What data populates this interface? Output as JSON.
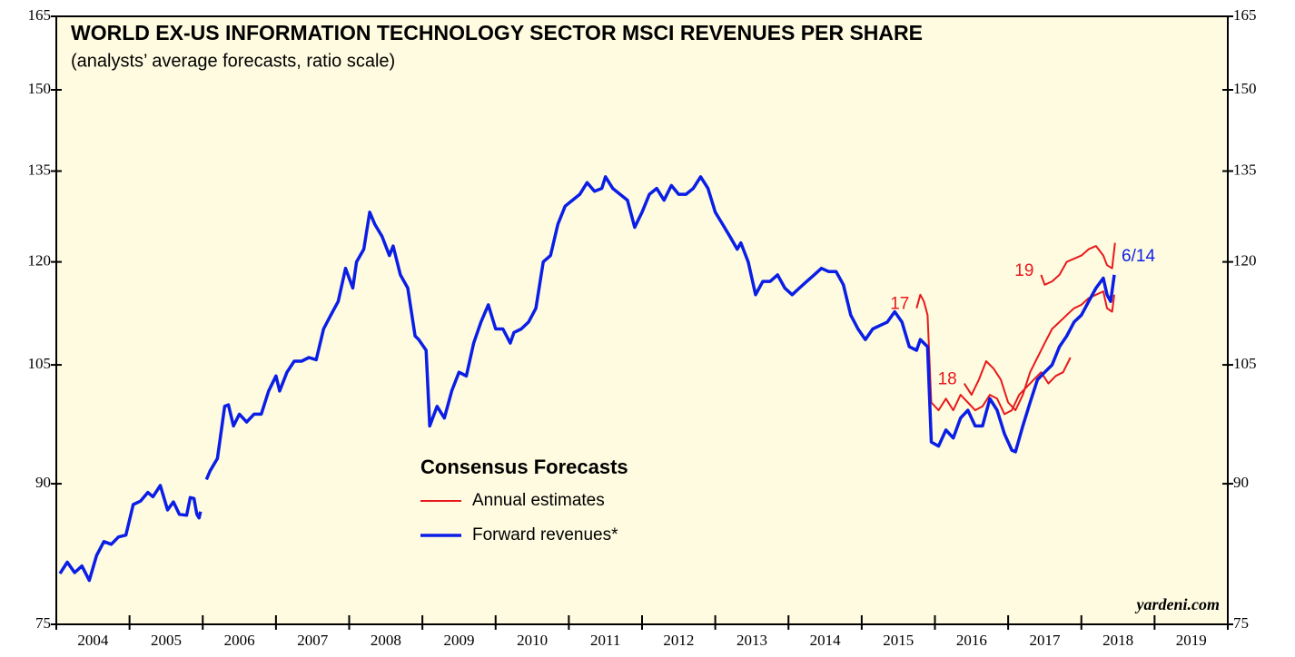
{
  "chart_data": {
    "type": "line",
    "title": "WORLD EX-US INFORMATION TECHNOLOGY SECTOR MSCI REVENUES PER SHARE",
    "subtitle": "(analysts’ average forecasts, ratio scale)",
    "legend_title": "Consensus Forecasts",
    "source": "yardeni.com",
    "log_scale": true,
    "ylim": [
      75,
      165
    ],
    "yticks": [
      75,
      90,
      105,
      120,
      135,
      150,
      165
    ],
    "xlim": [
      2004,
      2020
    ],
    "xticks": [
      2004,
      2005,
      2006,
      2007,
      2008,
      2009,
      2010,
      2011,
      2012,
      2013,
      2014,
      2015,
      2016,
      2017,
      2018,
      2019,
      2020
    ],
    "categories": [
      "2004",
      "2005",
      "2006",
      "2007",
      "2008",
      "2009",
      "2010",
      "2011",
      "2012",
      "2013",
      "2014",
      "2015",
      "2016",
      "2017",
      "2018",
      "2019"
    ],
    "series": [
      {
        "name": "Annual estimates",
        "color": "#e8191c",
        "pieces": [
          {
            "label": "17",
            "x": [
              2015.75,
              2015.8,
              2015.85,
              2015.9,
              2015.95,
              2016.05,
              2016.15,
              2016.25,
              2016.35,
              2016.45,
              2016.55,
              2016.65,
              2016.75,
              2016.85,
              2016.95,
              2017.05,
              2017.15,
              2017.25,
              2017.35,
              2017.45,
              2017.55,
              2017.65,
              2017.75,
              2017.85
            ],
            "values": [
              113,
              115,
              114,
              112,
              100,
              99,
              100.5,
              99,
              101,
              100,
              99,
              99.5,
              101,
              100.5,
              98.5,
              99,
              101,
              102,
              103,
              104,
              102.5,
              103.5,
              104,
              106
            ]
          },
          {
            "label": "18",
            "x": [
              2016.4,
              2016.5,
              2016.6,
              2016.7,
              2016.8,
              2016.9,
              2017.0,
              2017.1,
              2017.2,
              2017.3,
              2017.4,
              2017.5,
              2017.6,
              2017.7,
              2017.8,
              2017.9,
              2018.0,
              2018.1,
              2018.2,
              2018.3,
              2018.35,
              2018.42,
              2018.45
            ],
            "values": [
              102.5,
              101,
              103,
              105.5,
              104.5,
              103,
              100,
              99,
              101,
              104,
              106,
              108,
              110,
              111,
              112,
              113,
              113.5,
              114.5,
              115,
              115.5,
              113,
              112.5,
              115
            ]
          },
          {
            "label": "19",
            "x": [
              2017.45,
              2017.5,
              2017.6,
              2017.7,
              2017.8,
              2017.9,
              2018.0,
              2018.1,
              2018.2,
              2018.3,
              2018.35,
              2018.42,
              2018.46
            ],
            "values": [
              118,
              116.5,
              117,
              118,
              120,
              120.5,
              121,
              122,
              122.5,
              121,
              119.5,
              119,
              123
            ]
          }
        ]
      },
      {
        "name": "Forward revenues*",
        "color": "#0a1ee6",
        "end_label": "6/14",
        "x": [
          2004.05,
          2004.15,
          2004.25,
          2004.35,
          2004.45,
          2004.55,
          2004.65,
          2004.75,
          2004.85,
          2004.95,
          2005.05,
          2005.15,
          2005.25,
          2005.32,
          2005.42,
          2005.52,
          2005.6,
          2005.68,
          2005.78,
          2005.83,
          2005.88,
          2005.92,
          2005.95,
          2005.97,
          2006.0,
          2006.05,
          2006.1,
          2006.2,
          2006.3,
          2006.35,
          2006.42,
          2006.5,
          2006.6,
          2006.7,
          2006.8,
          2006.9,
          2007.0,
          2007.05,
          2007.15,
          2007.25,
          2007.35,
          2007.45,
          2007.55,
          2007.65,
          2007.75,
          2007.85,
          2007.95,
          2008.05,
          2008.1,
          2008.2,
          2008.28,
          2008.35,
          2008.45,
          2008.55,
          2008.6,
          2008.7,
          2008.8,
          2008.9,
          2008.95,
          2009.05,
          2009.1,
          2009.2,
          2009.3,
          2009.4,
          2009.5,
          2009.6,
          2009.7,
          2009.8,
          2009.9,
          2010.0,
          2010.1,
          2010.2,
          2010.25,
          2010.35,
          2010.45,
          2010.55,
          2010.65,
          2010.75,
          2010.85,
          2010.95,
          2011.05,
          2011.15,
          2011.25,
          2011.35,
          2011.45,
          2011.5,
          2011.6,
          2011.7,
          2011.8,
          2011.9,
          2012.0,
          2012.1,
          2012.2,
          2012.3,
          2012.4,
          2012.5,
          2012.6,
          2012.7,
          2012.8,
          2012.9,
          2013.0,
          2013.1,
          2013.2,
          2013.3,
          2013.35,
          2013.45,
          2013.55,
          2013.65,
          2013.75,
          2013.85,
          2013.95,
          2014.05,
          2014.15,
          2014.25,
          2014.35,
          2014.45,
          2014.55,
          2014.65,
          2014.75,
          2014.85,
          2014.95,
          2015.05,
          2015.15,
          2015.25,
          2015.35,
          2015.45,
          2015.55,
          2015.65,
          2015.75,
          2015.8,
          2015.9,
          2015.95,
          2016.05,
          2016.15,
          2016.25,
          2016.35,
          2016.45,
          2016.55,
          2016.65,
          2016.75,
          2016.85,
          2016.95,
          2017.05,
          2017.1,
          2017.2,
          2017.3,
          2017.4,
          2017.5,
          2017.6,
          2017.7,
          2017.8,
          2017.9,
          2018.0,
          2018.1,
          2018.2,
          2018.3,
          2018.35,
          2018.4,
          2018.45
        ],
        "values": [
          80.1,
          81.3,
          80.2,
          80.9,
          79.4,
          82,
          83.5,
          83.2,
          84,
          84.2,
          87.6,
          88,
          89,
          88.5,
          89.8,
          87,
          87.9,
          86.5,
          86.4,
          88.4,
          88.3,
          86.5,
          86.1,
          86.8,
          null,
          90.5,
          91.5,
          93,
          99.5,
          99.7,
          97,
          98.5,
          97.5,
          98.5,
          98.5,
          101.5,
          103.5,
          101.5,
          104,
          105.5,
          105.5,
          106,
          105.7,
          110,
          112,
          114,
          119,
          116,
          120,
          122,
          128,
          126,
          124,
          121,
          122.5,
          118,
          116,
          109,
          108.5,
          107,
          97,
          99.5,
          98,
          101.5,
          104,
          103.5,
          108,
          111,
          113.5,
          110,
          110,
          108,
          109.5,
          110,
          111,
          113,
          120,
          121,
          126,
          129,
          130,
          131,
          133,
          131.5,
          132,
          134,
          132,
          131,
          130,
          125.5,
          128,
          131,
          132,
          130,
          132.5,
          131,
          131,
          132,
          134,
          132,
          128,
          126,
          124,
          122,
          123,
          120,
          115,
          117,
          117,
          118,
          116,
          115,
          116,
          117,
          118,
          119,
          118.5,
          118.5,
          116.5,
          112,
          110,
          108.5,
          110,
          110.5,
          111,
          112.5,
          111,
          107.5,
          107,
          108.5,
          107.5,
          95,
          94.5,
          96.5,
          95.5,
          98,
          99,
          97,
          97,
          100.5,
          99,
          96,
          94,
          93.8,
          97,
          100,
          103,
          104,
          105,
          107.5,
          109,
          111,
          112,
          114,
          116,
          117.5,
          115,
          114,
          118
        ]
      }
    ]
  }
}
